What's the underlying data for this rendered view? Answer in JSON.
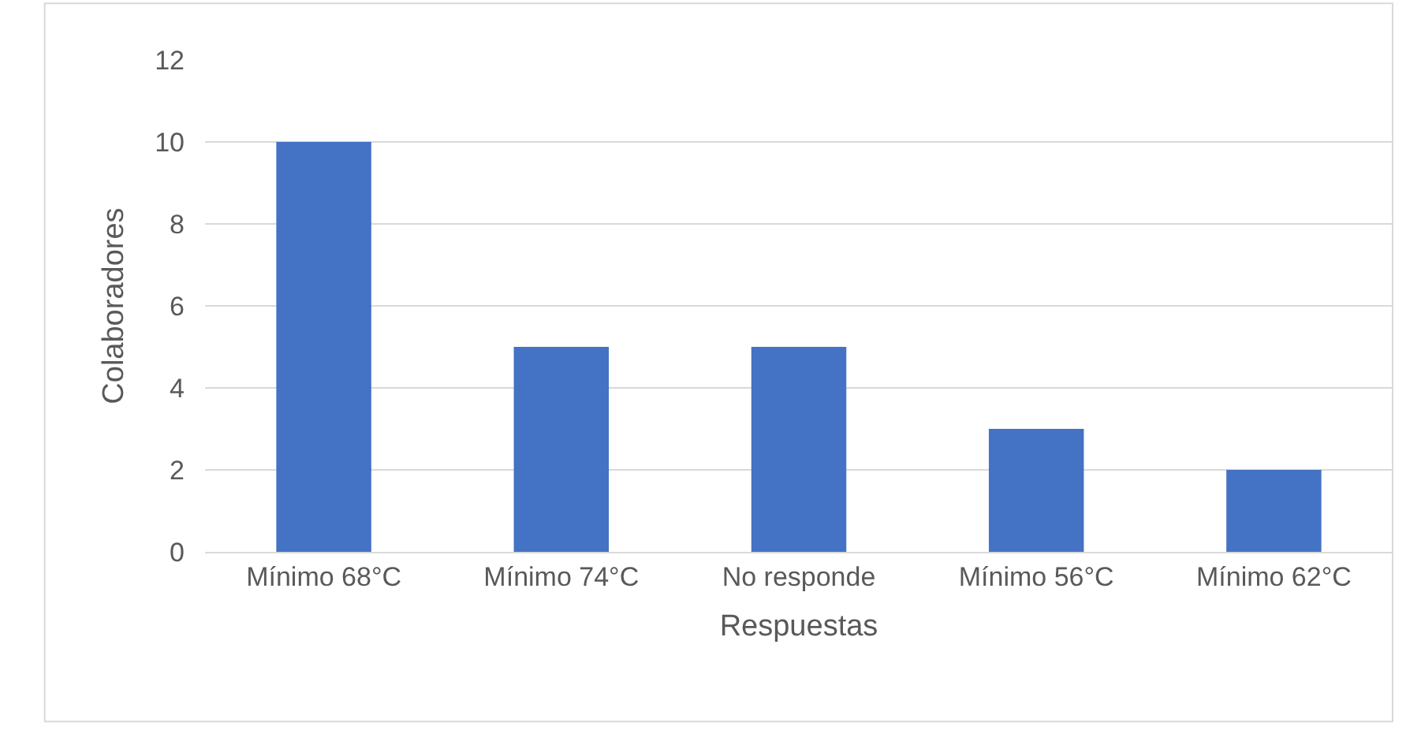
{
  "chart_data": {
    "type": "bar",
    "xlabel": "Respuestas",
    "ylabel": "Colaboradores",
    "categories": [
      "Mínimo 68°C",
      "Mínimo 74°C",
      "No responde",
      "Mínimo 56°C",
      "Mínimo 62°C"
    ],
    "values": [
      10,
      5,
      5,
      3,
      2
    ],
    "color": "#4472c4",
    "ylim": [
      0,
      12
    ],
    "yticks": [
      0,
      2,
      4,
      6,
      8,
      10,
      12
    ],
    "grid": "y",
    "legend": false
  }
}
